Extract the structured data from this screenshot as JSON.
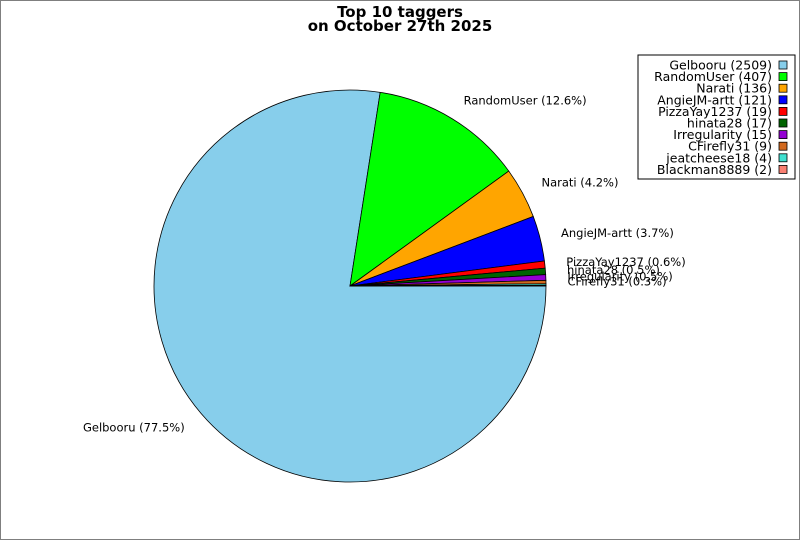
{
  "chart_data": {
    "type": "pie",
    "title": "Top 10 taggers",
    "subtitle": "on October 27th 2025",
    "slices": [
      {
        "name": "Gelbooru",
        "value": 2509,
        "percent_label": "Gelbooru (77.5%)",
        "legend_label": "Gelbooru (2509)",
        "color": "#87ceeb"
      },
      {
        "name": "RandomUser",
        "value": 407,
        "percent_label": "RandomUser (12.6%)",
        "legend_label": "RandomUser (407)",
        "color": "#00ff00"
      },
      {
        "name": "Narati",
        "value": 136,
        "percent_label": "Narati (4.2%)",
        "legend_label": "Narati (136)",
        "color": "#ffa500"
      },
      {
        "name": "AngieJM-artt",
        "value": 121,
        "percent_label": "AngieJM-artt (3.7%)",
        "legend_label": "AngieJM-artt (121)",
        "color": "#0000ff"
      },
      {
        "name": "PizzaYay1237",
        "value": 19,
        "percent_label": "PizzaYay1237 (0.6%)",
        "legend_label": "PizzaYay1237 (19)",
        "color": "#ff0000"
      },
      {
        "name": "hinata28",
        "value": 17,
        "percent_label": "hinata28 (0.5%)",
        "legend_label": "hinata28 (17)",
        "color": "#006400"
      },
      {
        "name": "Irregularity",
        "value": 15,
        "percent_label": "Irregularity (0.5%)",
        "legend_label": "Irregularity (15)",
        "color": "#9400d3"
      },
      {
        "name": "CFirefly31",
        "value": 9,
        "percent_label": "CFirefly31 (0.3%)",
        "legend_label": "CFirefly31 (9)",
        "color": "#d2691e"
      },
      {
        "name": "jeatcheese18",
        "value": 4,
        "percent_label": "",
        "legend_label": "jeatcheese18 (4)",
        "color": "#40e0d0"
      },
      {
        "name": "Blackman8889",
        "value": 2,
        "percent_label": "",
        "legend_label": "Blackman8889 (2)",
        "color": "#fa8072"
      }
    ],
    "legend_position": "top-right"
  }
}
